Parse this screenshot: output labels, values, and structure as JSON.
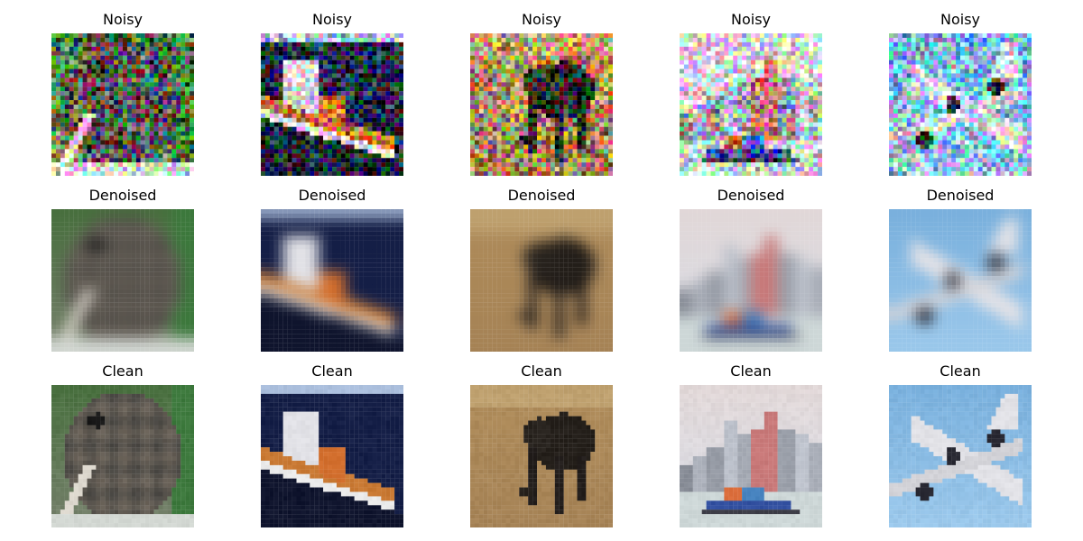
{
  "figure": {
    "rows": [
      {
        "title": "Noisy",
        "images": [
          {
            "subject": "kiwi bird",
            "style": "noisy"
          },
          {
            "subject": "ship",
            "style": "noisy"
          },
          {
            "subject": "animal in field",
            "style": "noisy"
          },
          {
            "subject": "harbor with boat",
            "style": "noisy"
          },
          {
            "subject": "airplane",
            "style": "noisy"
          }
        ]
      },
      {
        "title": "Denoised",
        "images": [
          {
            "subject": "kiwi bird",
            "style": "blurred"
          },
          {
            "subject": "ship",
            "style": "blurred"
          },
          {
            "subject": "animal in field",
            "style": "blurred"
          },
          {
            "subject": "harbor with boat",
            "style": "blurred"
          },
          {
            "subject": "airplane",
            "style": "blurred"
          }
        ]
      },
      {
        "title": "Clean",
        "images": [
          {
            "subject": "kiwi bird",
            "style": "clean"
          },
          {
            "subject": "ship",
            "style": "clean"
          },
          {
            "subject": "animal in field",
            "style": "clean"
          },
          {
            "subject": "harbor with boat",
            "style": "clean"
          },
          {
            "subject": "airplane",
            "style": "clean"
          }
        ]
      }
    ]
  }
}
